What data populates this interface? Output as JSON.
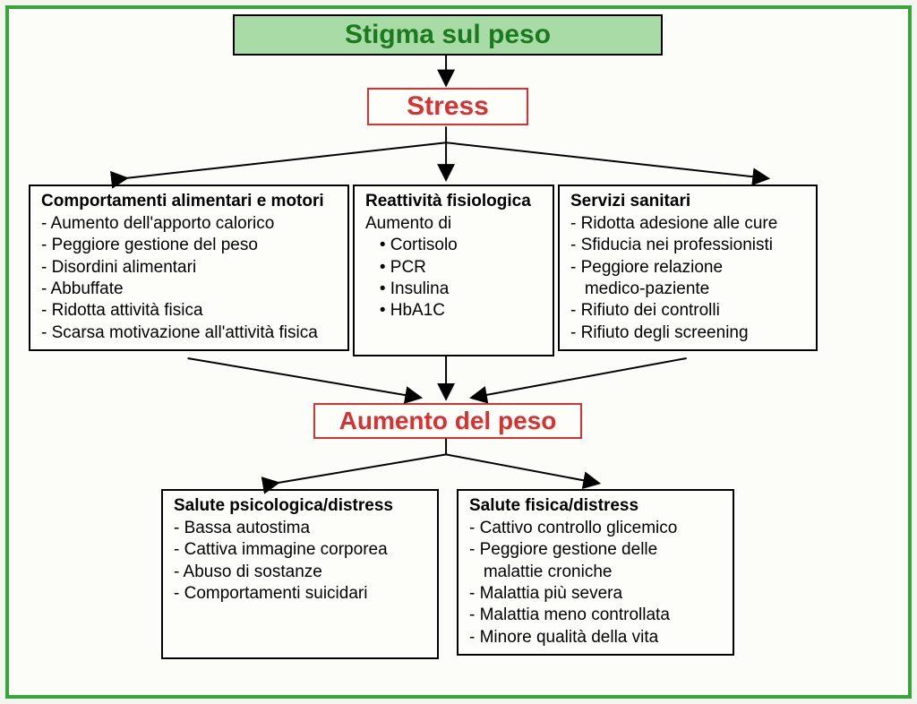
{
  "type": "flowchart",
  "frame_border_color": "#33a838",
  "background_color": "#fcfcf9",
  "text_color": "#111111",
  "accent_red": "#d93030",
  "accent_green_text": "#1b7a1f",
  "title_bg": "#a8dba5",
  "arrow_color": "#000000",
  "nodes": {
    "title": {
      "label": "Stigma sul peso",
      "fontsize": 30
    },
    "stress": {
      "label": "Stress",
      "fontsize": 30
    },
    "aumento": {
      "label": "Aumento del peso",
      "fontsize": 28
    },
    "box1": {
      "heading": "Comportamenti alimentari e motori",
      "lines": [
        "- Aumento dell'apporto calorico",
        "- Peggiore gestione del peso",
        "- Disordini alimentari",
        "- Abbuffate",
        "- Ridotta attività fisica",
        "- Scarsa motivazione all'attività fisica"
      ]
    },
    "box2": {
      "heading": "Reattività fisiologica",
      "lines": [
        "Aumento di",
        "   • Cortisolo",
        "   • PCR",
        "   • Insulina",
        "   • HbA1C"
      ]
    },
    "box3": {
      "heading": "Servizi sanitari",
      "lines": [
        "- Ridotta adesione alle cure",
        "- Sfiducia nei professionisti",
        "- Peggiore relazione",
        "   medico-paziente",
        "- Rifiuto dei controlli",
        "- Rifiuto degli screening"
      ]
    },
    "box4": {
      "heading": "Salute psicologica/distress",
      "lines": [
        "- Bassa autostima",
        "- Cattiva immagine corporea",
        "- Abuso di sostanze",
        "- Comportamenti suicidari"
      ]
    },
    "box5": {
      "heading": "Salute fisica/distress",
      "lines": [
        "- Cattivo controllo glicemico",
        "- Peggiore gestione delle",
        "   malattie croniche",
        "- Malattia più severa",
        "- Malattia meno controllata",
        "- Minore qualità della vita"
      ]
    }
  }
}
